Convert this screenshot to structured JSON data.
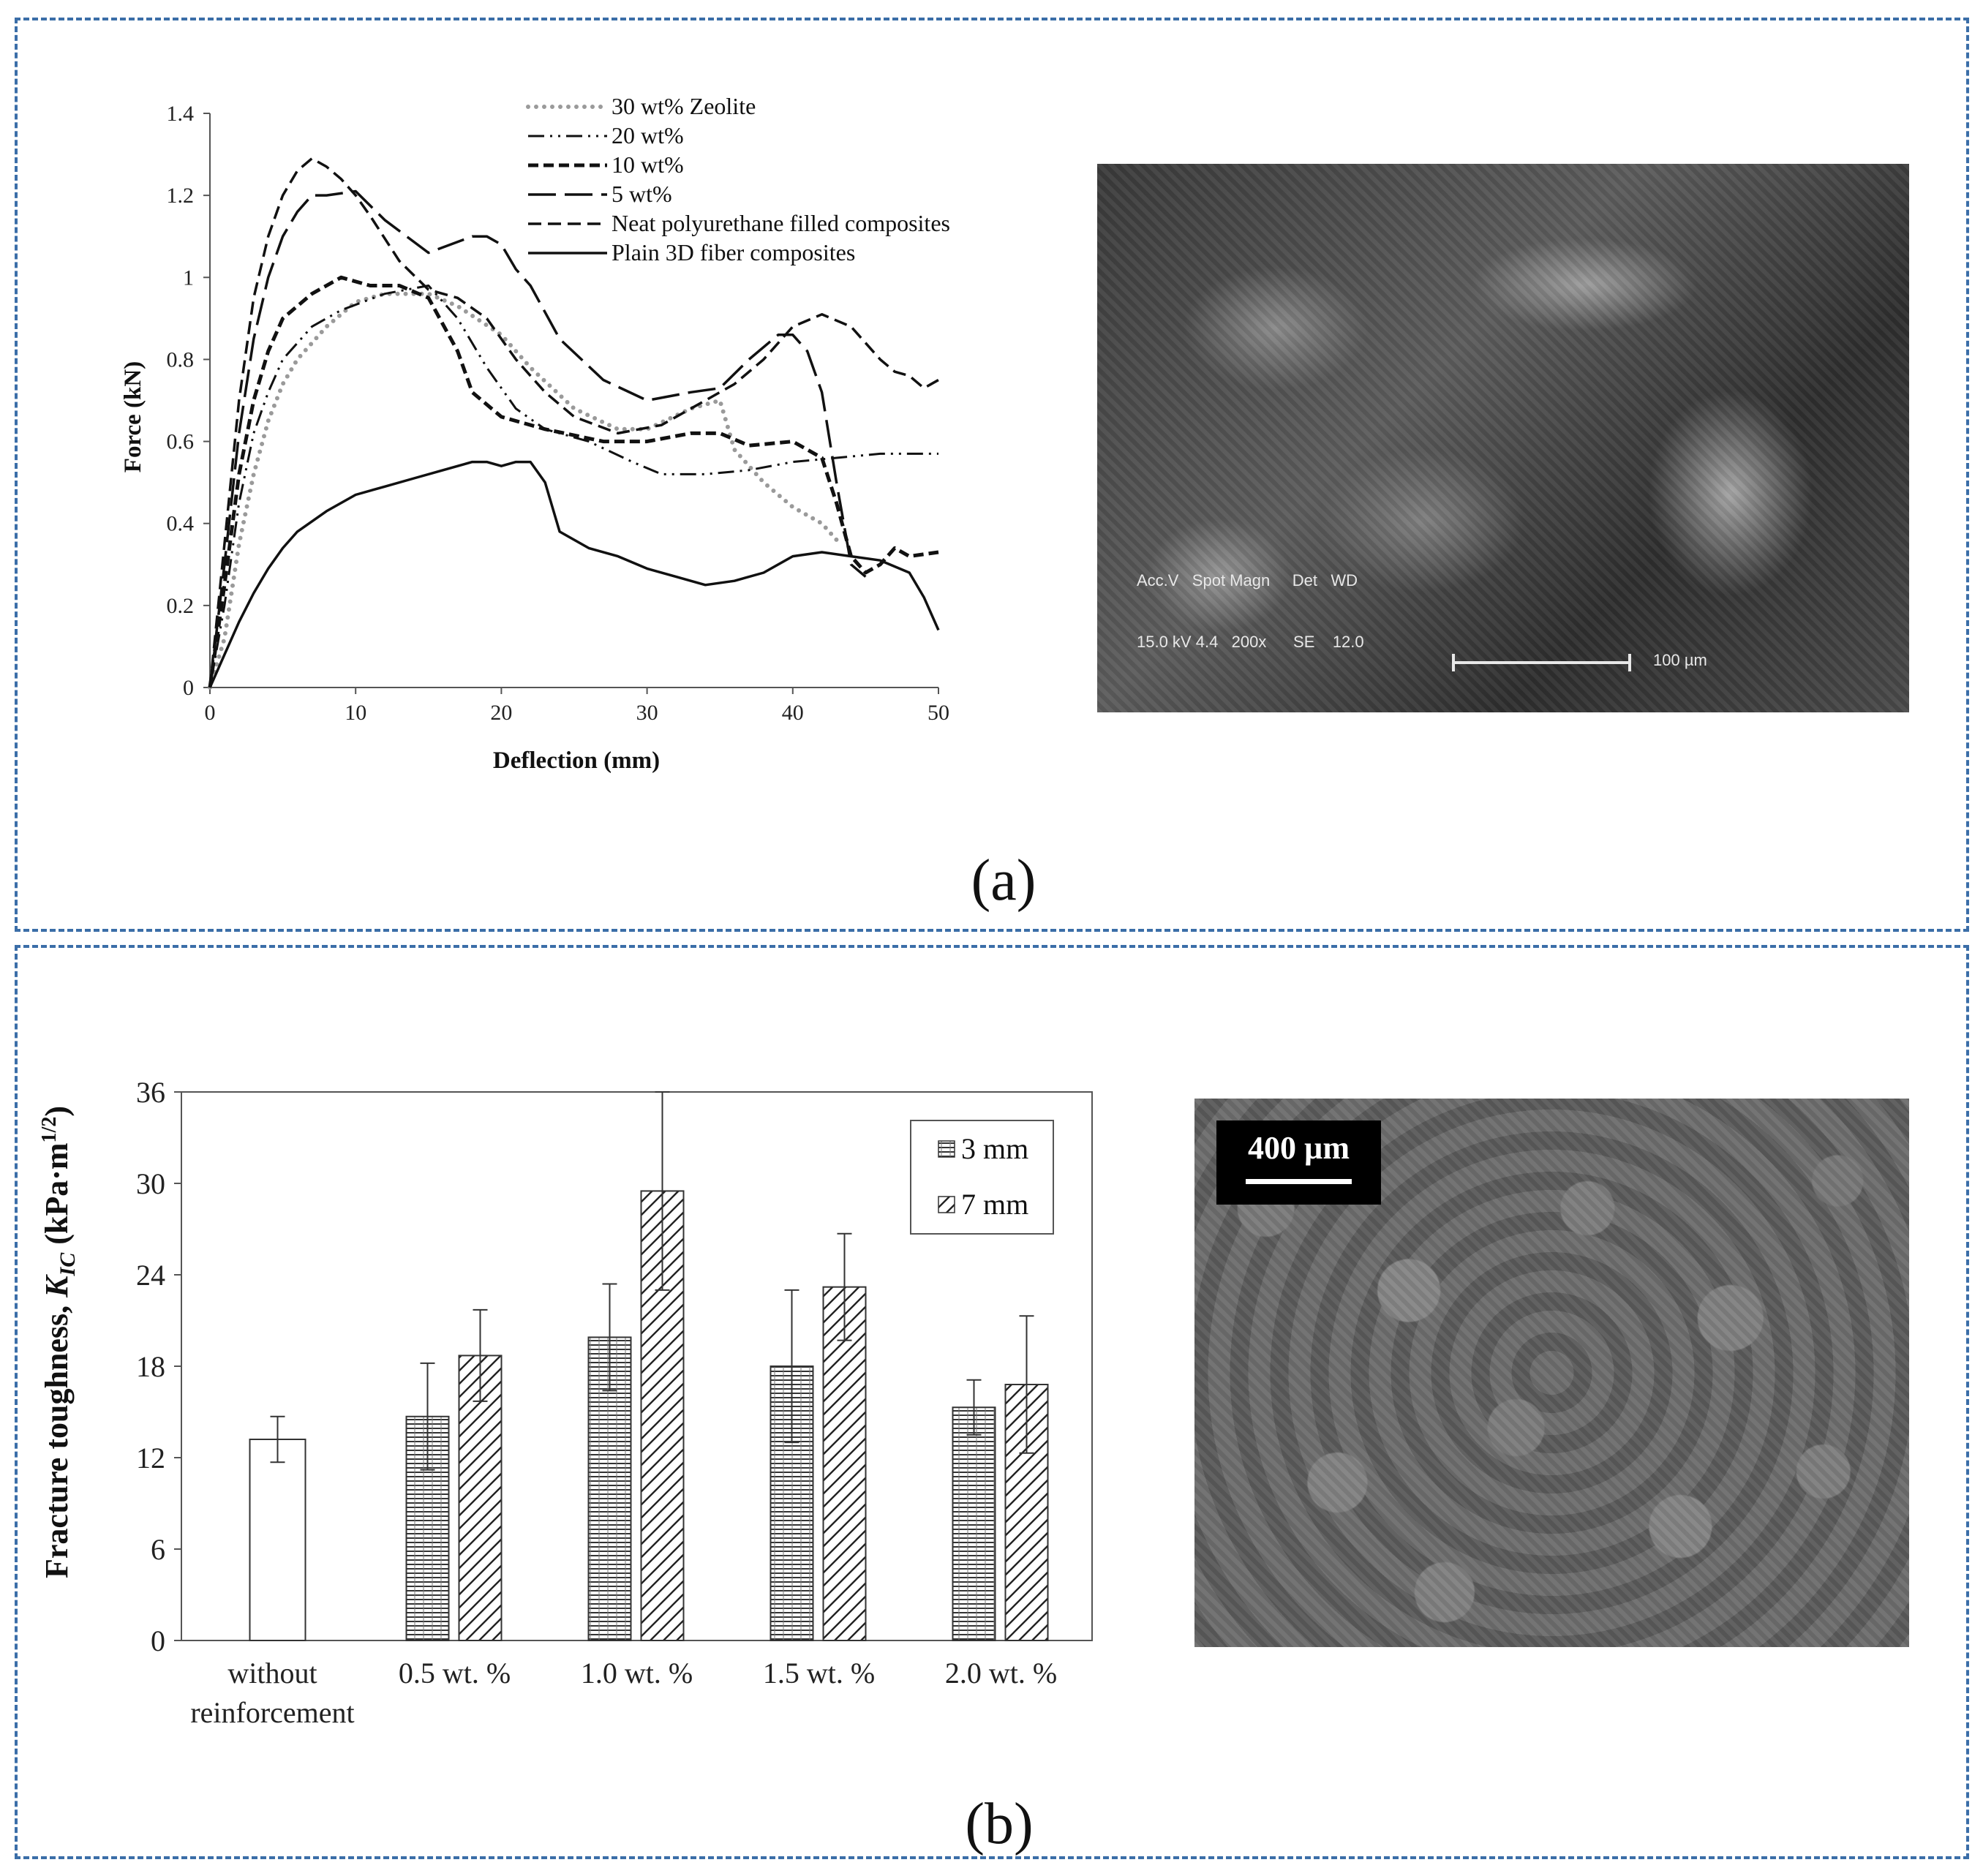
{
  "panels": [
    {
      "label": "(a)"
    },
    {
      "label": "(b)"
    }
  ],
  "chart_data": [
    {
      "type": "line",
      "xlabel": "Deflection (mm)",
      "ylabel": "Force (kN)",
      "xlim": [
        0,
        50
      ],
      "ylim": [
        0,
        1.4
      ],
      "xticks": [
        "0",
        "10",
        "20",
        "30",
        "40",
        "50"
      ],
      "yticks": [
        "0",
        "0.2",
        "0.4",
        "0.6",
        "0.8",
        "1",
        "1.2",
        "1.4"
      ],
      "grid": false,
      "legend_position": "top",
      "series": [
        {
          "name": "30 wt% Zeolite",
          "style": "dotted-gray",
          "x": [
            0,
            1,
            2,
            3,
            4,
            5,
            6,
            8,
            10,
            12,
            15,
            17,
            20,
            22,
            25,
            28,
            30,
            33,
            35,
            36,
            38,
            40,
            42,
            43
          ],
          "y": [
            0,
            0.12,
            0.35,
            0.52,
            0.65,
            0.74,
            0.8,
            0.88,
            0.94,
            0.96,
            0.96,
            0.93,
            0.86,
            0.78,
            0.68,
            0.63,
            0.63,
            0.68,
            0.7,
            0.58,
            0.5,
            0.44,
            0.4,
            0.36
          ]
        },
        {
          "name": "20 wt%",
          "style": "dash-dot-dot",
          "x": [
            0,
            1,
            2,
            3,
            4,
            5,
            7,
            9,
            12,
            15,
            17,
            19,
            21,
            23,
            26,
            29,
            31,
            34,
            37,
            40,
            43,
            46,
            50
          ],
          "y": [
            0,
            0.2,
            0.45,
            0.62,
            0.72,
            0.8,
            0.88,
            0.92,
            0.96,
            0.98,
            0.9,
            0.78,
            0.68,
            0.63,
            0.6,
            0.55,
            0.52,
            0.52,
            0.53,
            0.55,
            0.56,
            0.57,
            0.57
          ]
        },
        {
          "name": "10 wt%",
          "style": "dashed-heavy",
          "x": [
            0,
            1,
            2,
            3,
            4,
            5,
            7,
            9,
            11,
            13,
            15,
            17,
            18,
            20,
            23,
            27,
            30,
            33,
            35,
            37,
            40,
            42,
            43,
            44,
            45,
            46,
            47,
            48,
            50
          ],
          "y": [
            0,
            0.25,
            0.52,
            0.7,
            0.82,
            0.9,
            0.96,
            1.0,
            0.98,
            0.98,
            0.95,
            0.82,
            0.72,
            0.66,
            0.63,
            0.6,
            0.6,
            0.62,
            0.62,
            0.59,
            0.6,
            0.56,
            0.45,
            0.32,
            0.28,
            0.3,
            0.34,
            0.32,
            0.33
          ]
        },
        {
          "name": "5 wt%",
          "style": "long-dash",
          "x": [
            0,
            1,
            2,
            3,
            4,
            5,
            6,
            7,
            8,
            10,
            12,
            15,
            18,
            19,
            20,
            21,
            22,
            24,
            27,
            30,
            33,
            35,
            37,
            39,
            40,
            41,
            42,
            43,
            44,
            45
          ],
          "y": [
            0,
            0.3,
            0.62,
            0.85,
            1.0,
            1.1,
            1.16,
            1.2,
            1.2,
            1.21,
            1.14,
            1.06,
            1.1,
            1.1,
            1.08,
            1.02,
            0.98,
            0.85,
            0.75,
            0.7,
            0.72,
            0.73,
            0.8,
            0.86,
            0.86,
            0.82,
            0.72,
            0.5,
            0.3,
            0.27
          ]
        },
        {
          "name": "Neat polyurethane filled composites",
          "style": "dashed",
          "x": [
            0,
            1,
            2,
            3,
            4,
            5,
            6,
            7,
            8,
            9,
            10,
            11,
            13,
            15,
            17,
            19,
            21,
            23,
            25,
            28,
            31,
            34,
            36,
            38,
            40,
            42,
            44,
            46,
            47,
            48,
            49,
            50
          ],
          "y": [
            0,
            0.35,
            0.7,
            0.95,
            1.1,
            1.2,
            1.26,
            1.29,
            1.27,
            1.24,
            1.2,
            1.15,
            1.04,
            0.97,
            0.95,
            0.9,
            0.8,
            0.72,
            0.66,
            0.62,
            0.64,
            0.7,
            0.74,
            0.8,
            0.88,
            0.91,
            0.88,
            0.8,
            0.77,
            0.76,
            0.73,
            0.75
          ]
        },
        {
          "name": "Plain 3D fiber composites",
          "style": "solid",
          "x": [
            0,
            1,
            2,
            3,
            4,
            5,
            6,
            8,
            10,
            12,
            14,
            16,
            18,
            19,
            20,
            21,
            22,
            23,
            24,
            26,
            28,
            30,
            32,
            34,
            36,
            38,
            40,
            42,
            44,
            46,
            48,
            49,
            50
          ],
          "y": [
            0,
            0.08,
            0.16,
            0.23,
            0.29,
            0.34,
            0.38,
            0.43,
            0.47,
            0.49,
            0.51,
            0.53,
            0.55,
            0.55,
            0.54,
            0.55,
            0.55,
            0.5,
            0.38,
            0.34,
            0.32,
            0.29,
            0.27,
            0.25,
            0.26,
            0.28,
            0.32,
            0.33,
            0.32,
            0.31,
            0.28,
            0.22,
            0.14
          ]
        }
      ]
    },
    {
      "type": "bar",
      "ylabel_main": "Fracture toughness, ",
      "ylabel_sym": "K",
      "ylabel_sub": "IC",
      "ylabel_unit": " (kPa·m",
      "ylabel_exp": "1/2",
      "ylabel_close": ")",
      "ylim": [
        0,
        36
      ],
      "yticks": [
        "0",
        "6",
        "12",
        "18",
        "24",
        "30",
        "36"
      ],
      "categories": [
        "without reinforcement",
        "0.5 wt. %",
        "1.0 wt. %",
        "1.5 wt. %",
        "2.0 wt. %"
      ],
      "category_lines": [
        [
          "without",
          "reinforcement"
        ],
        [
          "0.5 wt. %"
        ],
        [
          "1.0 wt. %"
        ],
        [
          "1.5 wt. %"
        ],
        [
          "2.0 wt. %"
        ]
      ],
      "baseline": {
        "value": 13.2,
        "err": 1.5
      },
      "legend_position": "top-right",
      "series": [
        {
          "name": "3 mm",
          "pattern": "horizontal-hatch",
          "values": [
            null,
            14.7,
            19.9,
            18.0,
            15.3
          ],
          "errors": [
            null,
            3.5,
            3.5,
            5.0,
            1.8
          ]
        },
        {
          "name": "7 mm",
          "pattern": "diagonal-hatch",
          "values": [
            null,
            18.7,
            29.5,
            23.2,
            16.8
          ],
          "errors": [
            null,
            3.0,
            6.5,
            3.5,
            4.5
          ]
        }
      ]
    }
  ],
  "images": [
    {
      "kind": "sem-micrograph",
      "info_lines": [
        "Acc.V   Spot Magn     Det   WD",
        "15.0 kV 4.4   200x      SE    12.0"
      ],
      "scale": "100 µm"
    },
    {
      "kind": "sem-micrograph",
      "scale": "400 µm"
    }
  ]
}
